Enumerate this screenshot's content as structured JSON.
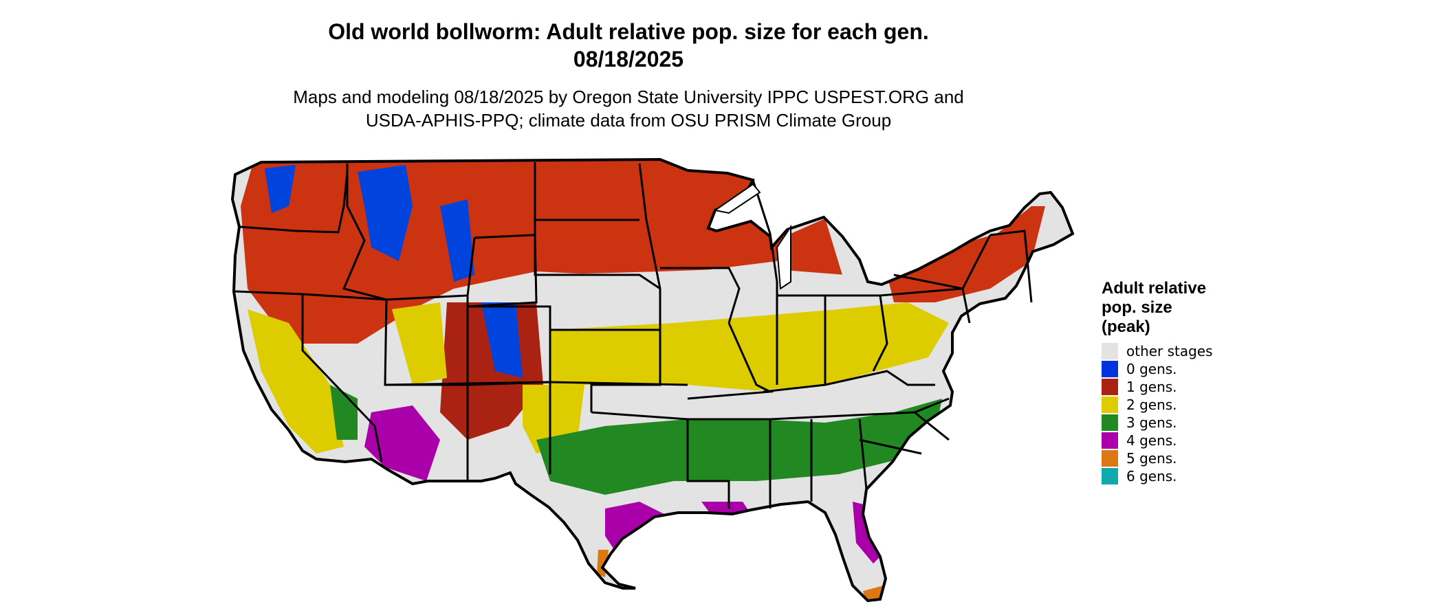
{
  "title": {
    "line1": "Old world bollworm: Adult relative pop. size for each gen.",
    "line2": "08/18/2025"
  },
  "subtitle": {
    "line1": "Maps and modeling 08/18/2025 by Oregon State University IPPC USPEST.ORG and",
    "line2": "USDA-APHIS-PPQ; climate data from OSU PRISM Climate Group"
  },
  "legend": {
    "title_lines": [
      "Adult relative",
      "pop. size",
      "(peak)"
    ],
    "items": [
      {
        "label": "other stages",
        "color": "#e3e3e3"
      },
      {
        "label": "0 gens.",
        "color": "#0033dd"
      },
      {
        "label": "1 gens.",
        "color": "#aa2211"
      },
      {
        "label": "2 gens.",
        "color": "#ddcc00"
      },
      {
        "label": "3 gens.",
        "color": "#228822"
      },
      {
        "label": "4 gens.",
        "color": "#aa00aa"
      },
      {
        "label": "5 gens.",
        "color": "#dd7711"
      },
      {
        "label": "6 gens.",
        "color": "#11aaaa"
      }
    ]
  }
}
